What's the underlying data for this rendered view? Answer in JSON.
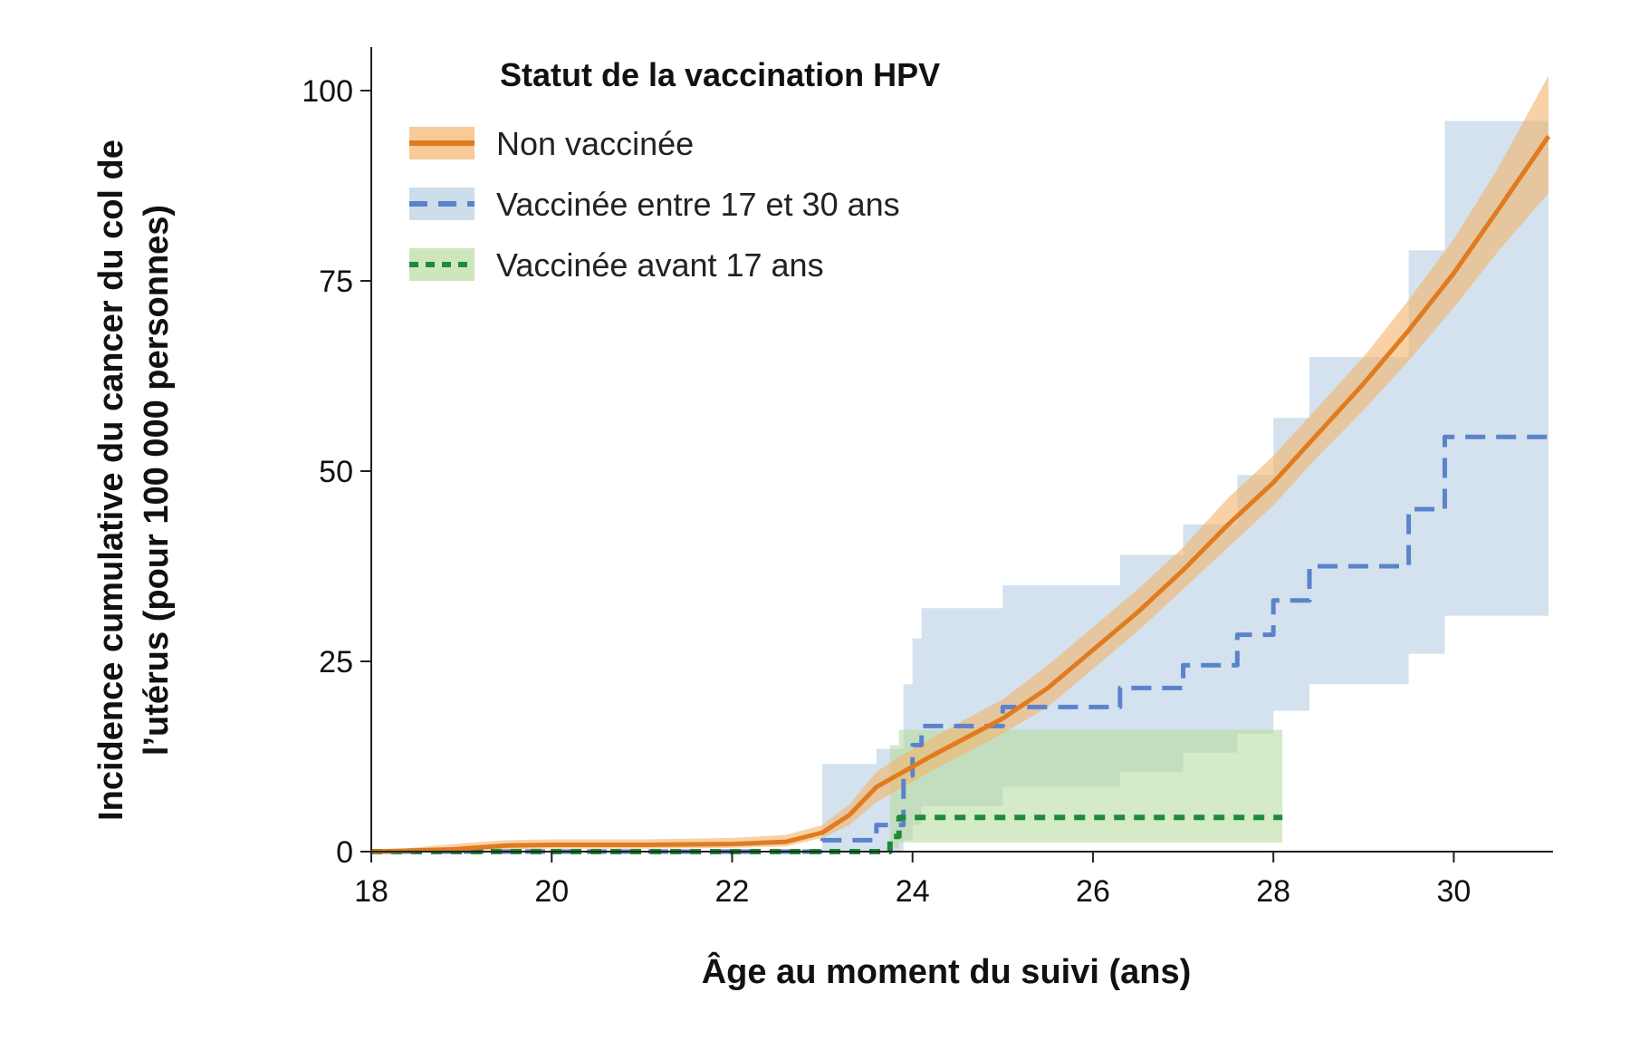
{
  "chart_data": {
    "type": "line",
    "xlabel": "Âge au moment du suivi (ans)",
    "ylabel_line1": "Incidence cumulative du cancer du col de",
    "ylabel_line2": "l’utérus (pour 100 000 personnes)",
    "xlim": [
      18,
      31.1
    ],
    "ylim": [
      0,
      100
    ],
    "x_ticks": [
      18,
      20,
      22,
      24,
      26,
      28,
      30
    ],
    "y_ticks": [
      0,
      25,
      50,
      75,
      100
    ],
    "grid": false,
    "legend_position": "top-left",
    "legend_title": "Statut de la vaccination HPV",
    "series": [
      {
        "name": "Non vaccinée",
        "style": "solid",
        "color": "#e07b1f",
        "band_color": "#f4b46b",
        "x": [
          18,
          18.9,
          19.5,
          20,
          21,
          22,
          22.6,
          23,
          23.3,
          23.6,
          23.9,
          24.2,
          24.6,
          25,
          25.5,
          26,
          26.5,
          27,
          27.5,
          28,
          28.5,
          29,
          29.5,
          30,
          30.5,
          31.05
        ],
        "y": [
          0,
          0.3,
          0.8,
          0.9,
          0.9,
          1.0,
          1.3,
          2.5,
          4.8,
          8.5,
          10.5,
          12.5,
          15.0,
          17.5,
          21.5,
          26.5,
          31.5,
          37.0,
          43.0,
          48.5,
          55.0,
          61.5,
          68.5,
          76.0,
          84.5,
          94.0
        ],
        "ci_lower": [
          0,
          0,
          0.3,
          0.4,
          0.4,
          0.5,
          0.7,
          1.8,
          3.5,
          6.5,
          8.5,
          10.5,
          13.0,
          15.5,
          19.0,
          24.0,
          29.0,
          34.5,
          40.0,
          45.5,
          52.0,
          58.0,
          64.5,
          71.5,
          79.0,
          86.5
        ],
        "ci_upper": [
          0,
          1.0,
          1.5,
          1.6,
          1.6,
          1.8,
          2.2,
          3.5,
          6.2,
          10.5,
          12.8,
          14.8,
          17.5,
          20.0,
          24.5,
          29.5,
          34.5,
          40.0,
          46.5,
          52.0,
          58.5,
          65.0,
          72.5,
          80.5,
          90.0,
          102.0
        ]
      },
      {
        "name": "Vaccinée entre 17 et 30 ans",
        "style": "dashed",
        "color": "#5b83c9",
        "band_color": "#b6cfe3",
        "x": [
          18,
          22.6,
          23.0,
          23.6,
          23.9,
          24.0,
          24.1,
          25.0,
          26.3,
          27.0,
          27.6,
          28.0,
          28.4,
          29.5,
          29.9,
          31.05
        ],
        "y": [
          0,
          0,
          1.5,
          3.5,
          10,
          14,
          16.5,
          19,
          21.5,
          24.5,
          28.5,
          33,
          37.5,
          45,
          54.5,
          54.5
        ],
        "ci_lower": [
          0,
          0,
          0,
          0,
          1.5,
          3.5,
          6,
          8.5,
          10.5,
          13,
          15.5,
          18.5,
          22,
          26,
          31,
          31
        ],
        "ci_upper": [
          0,
          0,
          11.5,
          13.5,
          22,
          28,
          32,
          35,
          39,
          43,
          49.5,
          57,
          65,
          79,
          96,
          96
        ]
      },
      {
        "name": "Vaccinée avant 17 ans",
        "style": "dotted",
        "color": "#1f8a3c",
        "band_color": "#b9dca0",
        "x": [
          18,
          23.7,
          23.75,
          23.85,
          28.1
        ],
        "y": [
          0,
          0,
          2.0,
          4.5,
          4.5
        ],
        "ci_lower": [
          0,
          0,
          0.5,
          1.2,
          1.2
        ],
        "ci_upper": [
          0,
          0,
          14,
          16,
          16
        ]
      }
    ]
  }
}
